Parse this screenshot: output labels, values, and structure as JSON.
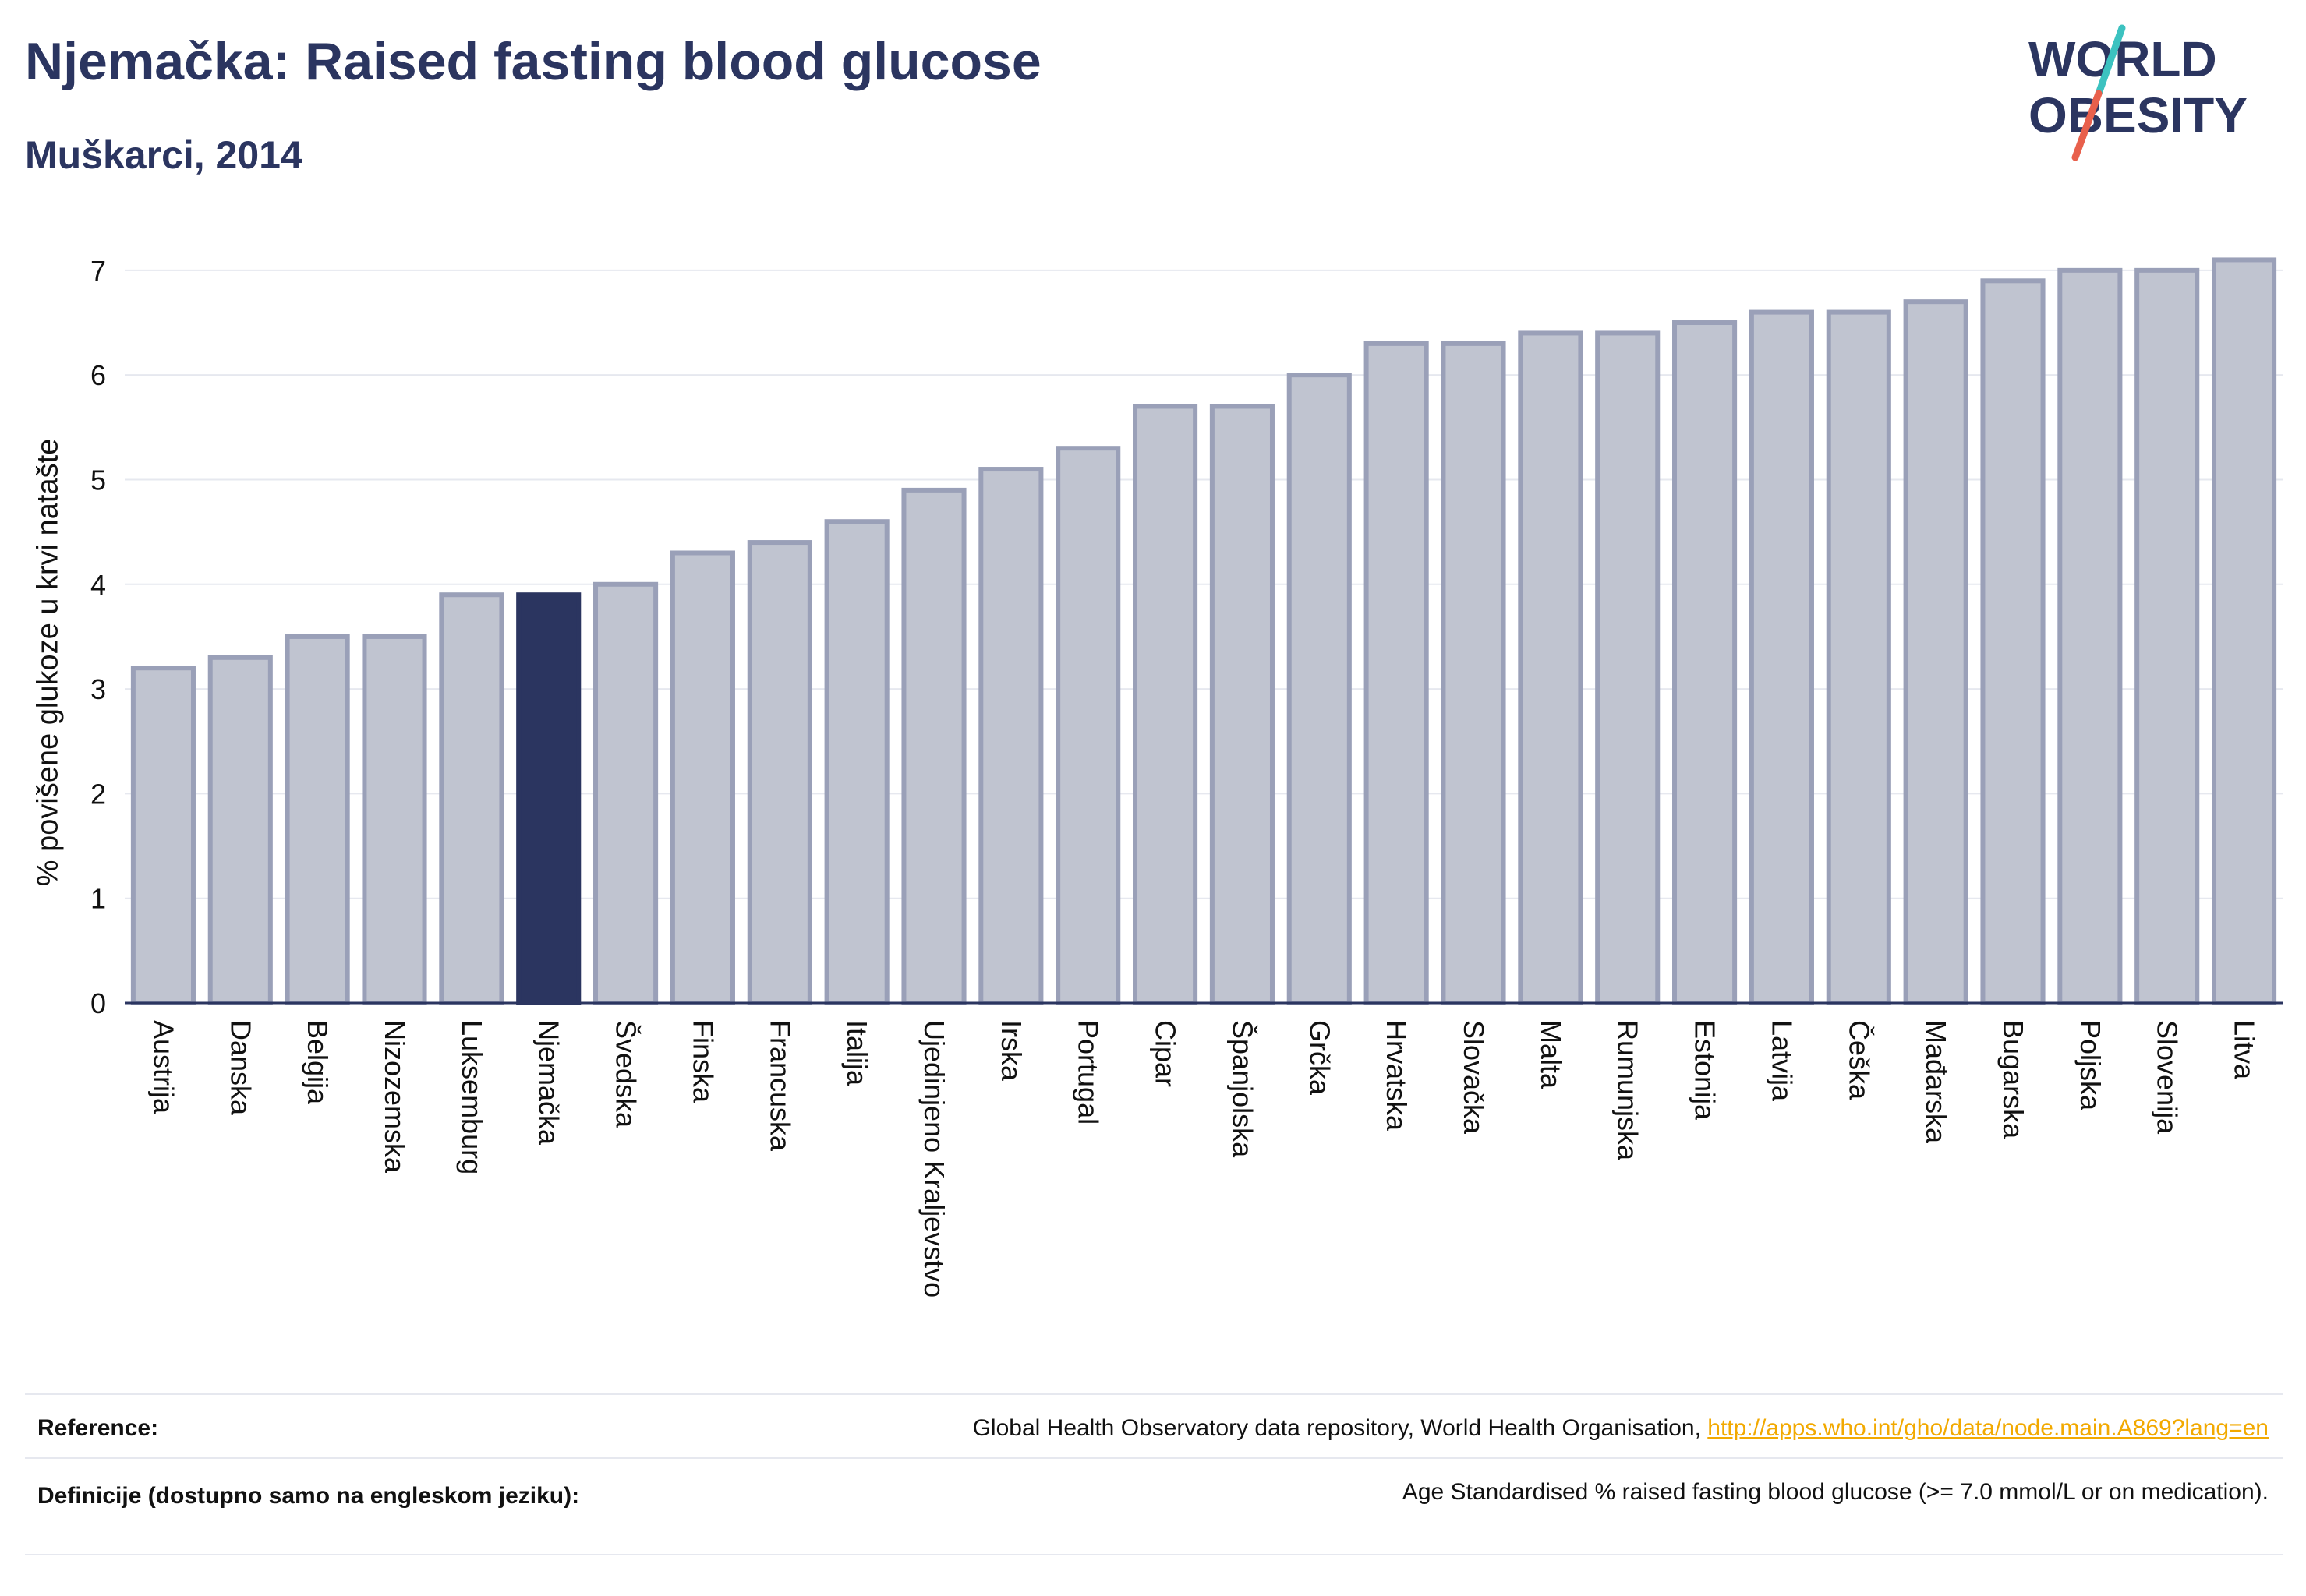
{
  "header": {
    "title": "Njemačka: Raised fasting blood glucose",
    "subtitle": "Muškarci, 2014"
  },
  "logo": {
    "line1": "WORLD",
    "line2": "OBESITY",
    "text_color": "#2b3560",
    "slash_colors": [
      "#3cc2c0",
      "#e8604c"
    ]
  },
  "chart_data": {
    "type": "bar",
    "ylabel": "% povišene glukoze u krvi natašte",
    "ylim": [
      0,
      7.2
    ],
    "yticks": [
      0,
      1,
      2,
      3,
      4,
      5,
      6,
      7
    ],
    "grid": true,
    "highlight_category": "Njemačka",
    "colors": {
      "bar": "#c0c4d0",
      "bar_outline": "#9aa0b8",
      "highlight": "#2b3560"
    },
    "categories": [
      "Austrija",
      "Danska",
      "Belgija",
      "Nizozemska",
      "Luksemburg",
      "Njemačka",
      "Švedska",
      "Finska",
      "Francuska",
      "Italija",
      "Ujedinjeno Kraljevstvo",
      "Irska",
      "Portugal",
      "Cipar",
      "Španjolska",
      "Grčka",
      "Hrvatska",
      "Slovačka",
      "Malta",
      "Rumunjska",
      "Estonija",
      "Latvija",
      "Češka",
      "Mađarska",
      "Bugarska",
      "Poljska",
      "Slovenija",
      "Litva"
    ],
    "values": [
      3.2,
      3.3,
      3.5,
      3.5,
      3.9,
      3.9,
      4.0,
      4.3,
      4.4,
      4.6,
      4.9,
      5.1,
      5.3,
      5.7,
      5.7,
      6.0,
      6.3,
      6.3,
      6.4,
      6.4,
      6.5,
      6.6,
      6.6,
      6.7,
      6.9,
      7.0,
      7.0,
      7.1
    ]
  },
  "footer": {
    "reference_label": "Reference:",
    "reference_text": "Global Health Observatory data repository, World Health Organisation, ",
    "reference_link": "http://apps.who.int/gho/data/node.main.A869?lang=en",
    "definition_label": "Definicije (dostupno samo na engleskom jeziku):",
    "definition_text": "Age Standardised % raised fasting blood glucose (>= 7.0 mmol/L or on medication)."
  }
}
